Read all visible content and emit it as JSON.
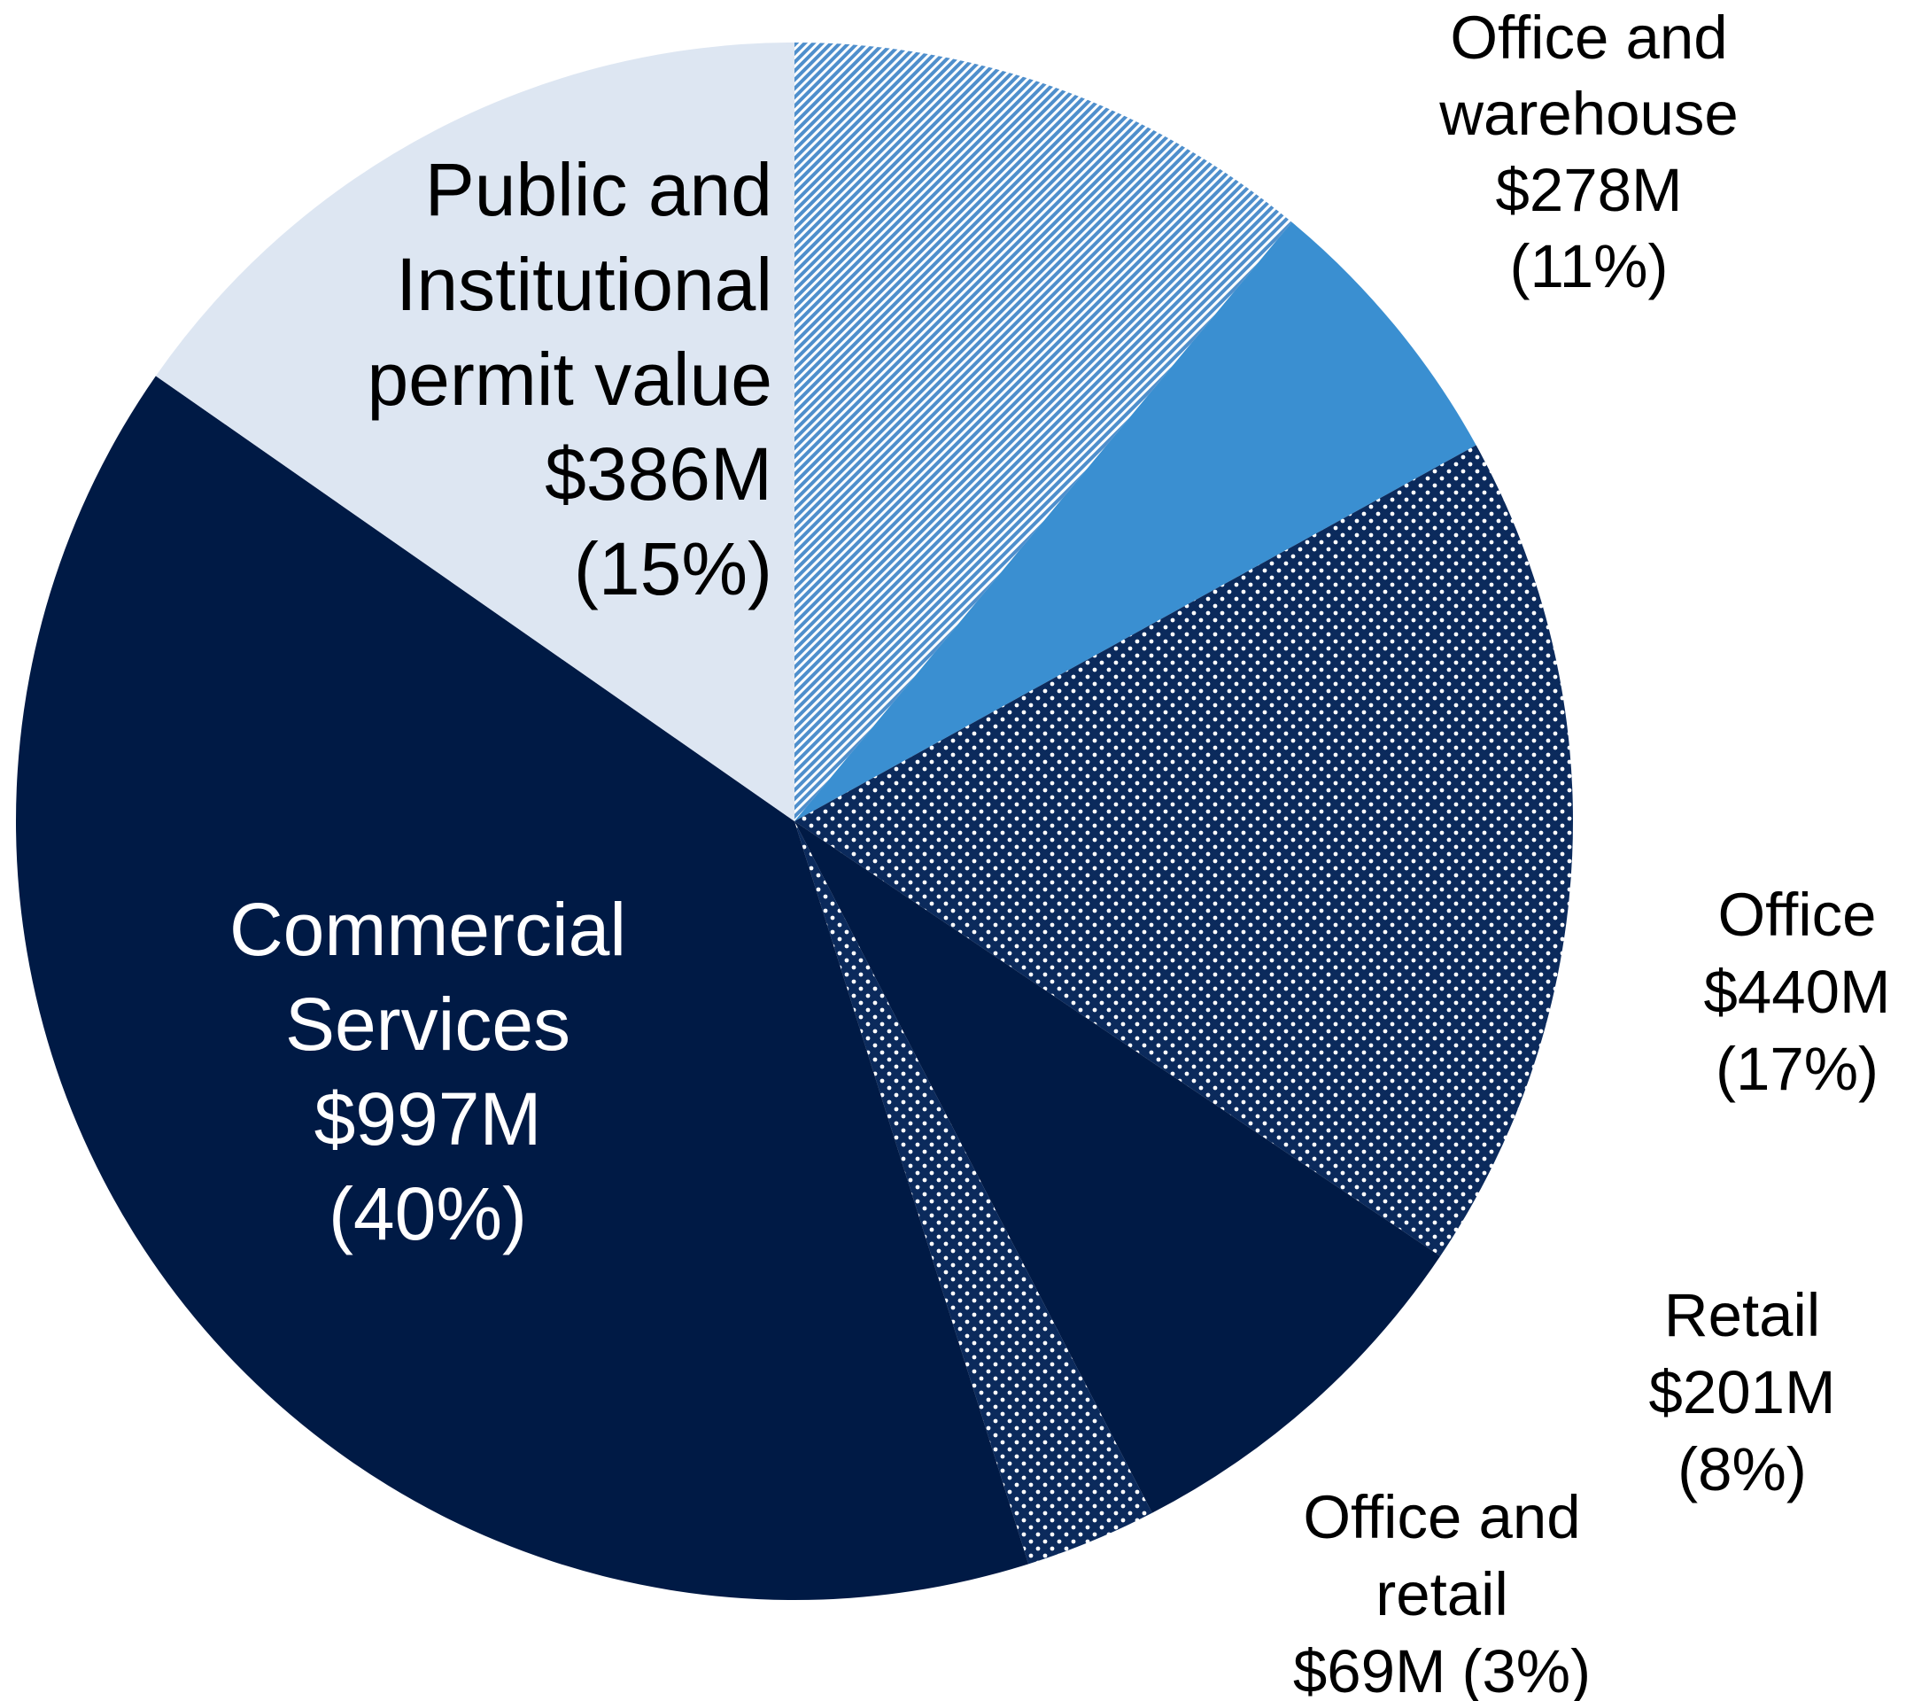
{
  "chart_data": {
    "type": "pie",
    "categories": [
      [
        "Office and",
        "warehouse"
      ],
      null,
      [
        "Office"
      ],
      [
        "Retail"
      ],
      [
        "Office and",
        "retail"
      ],
      [
        "Commercial",
        "Services"
      ],
      [
        "Public and",
        "Institutional",
        "permit value"
      ]
    ],
    "values": [
      278,
      150,
      440,
      201,
      69,
      997,
      386
    ],
    "value_labels": [
      "$278M",
      null,
      "$440M",
      "$201M",
      "$69M",
      "$997M",
      "$386M"
    ],
    "share_labels": [
      "(11%)",
      null,
      "(17%)",
      "(8%)",
      "(3%)",
      "(40%)",
      "(15%)"
    ],
    "colors": [
      "#5b9bd5",
      "#3a8fd1",
      "#0b2a5c",
      "#001a45",
      "#0b2a5c",
      "#001a45",
      "#dde6f2"
    ],
    "patterns": [
      "hatch",
      null,
      "dots",
      null,
      "dots",
      null,
      null
    ]
  }
}
